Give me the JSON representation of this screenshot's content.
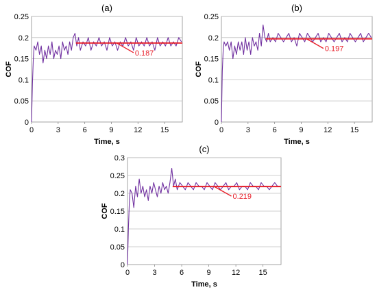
{
  "chart_data": [
    {
      "type": "line",
      "panel_label": "(a)",
      "xlabel": "Time, s",
      "ylabel": "COF",
      "xlim": [
        0,
        17
      ],
      "ylim": [
        0,
        0.25
      ],
      "xticks": [
        0,
        3,
        6,
        9,
        12,
        15
      ],
      "yticks": [
        0,
        0.05,
        0.1,
        0.15,
        0.2,
        0.25
      ],
      "ytick_labels": [
        "0",
        "0.05",
        "0.1",
        "0.15",
        "0.2",
        "0.25"
      ],
      "grid": true,
      "series": [
        {
          "x": [
            0,
            0.1,
            0.2,
            0.3,
            0.5,
            0.7,
            0.9,
            1.1,
            1.3,
            1.5,
            1.7,
            1.9,
            2.1,
            2.3,
            2.5,
            2.7,
            2.9,
            3.1,
            3.3,
            3.5,
            3.7,
            3.9,
            4.1,
            4.3,
            4.5,
            4.7,
            4.9,
            5.1,
            5.3,
            5.5,
            5.8,
            6.1,
            6.4,
            6.7,
            7.0,
            7.3,
            7.6,
            7.9,
            8.2,
            8.5,
            8.8,
            9.1,
            9.4,
            9.7,
            10.0,
            10.3,
            10.6,
            10.9,
            11.2,
            11.5,
            11.8,
            12.1,
            12.4,
            12.7,
            13.0,
            13.3,
            13.6,
            13.9,
            14.2,
            14.5,
            14.8,
            15.1,
            15.4,
            15.7,
            16.0,
            16.3,
            16.6,
            16.9
          ],
          "y": [
            0.0,
            0.09,
            0.15,
            0.18,
            0.17,
            0.19,
            0.16,
            0.18,
            0.14,
            0.17,
            0.15,
            0.18,
            0.16,
            0.19,
            0.15,
            0.17,
            0.16,
            0.18,
            0.15,
            0.19,
            0.17,
            0.18,
            0.16,
            0.19,
            0.17,
            0.2,
            0.21,
            0.18,
            0.2,
            0.17,
            0.19,
            0.18,
            0.2,
            0.17,
            0.19,
            0.18,
            0.2,
            0.18,
            0.19,
            0.17,
            0.2,
            0.18,
            0.19,
            0.17,
            0.19,
            0.18,
            0.2,
            0.18,
            0.19,
            0.17,
            0.2,
            0.18,
            0.19,
            0.18,
            0.2,
            0.18,
            0.19,
            0.17,
            0.2,
            0.18,
            0.19,
            0.18,
            0.2,
            0.18,
            0.19,
            0.18,
            0.2,
            0.19
          ]
        }
      ],
      "mean": {
        "value": 0.187,
        "label": "0.187",
        "x_from": 5,
        "x_to": 17
      }
    },
    {
      "type": "line",
      "panel_label": "(b)",
      "xlabel": "Time, s",
      "ylabel": "COF",
      "xlim": [
        0,
        17
      ],
      "ylim": [
        0,
        0.25
      ],
      "xticks": [
        0,
        3,
        6,
        9,
        12,
        15
      ],
      "yticks": [
        0,
        0.05,
        0.1,
        0.15,
        0.2,
        0.25
      ],
      "ytick_labels": [
        "0",
        "0.05",
        "0.1",
        "0.15",
        "0.2",
        "0.25"
      ],
      "grid": true,
      "series": [
        {
          "x": [
            0,
            0.1,
            0.2,
            0.3,
            0.5,
            0.7,
            0.9,
            1.1,
            1.3,
            1.5,
            1.7,
            1.9,
            2.1,
            2.3,
            2.5,
            2.7,
            2.9,
            3.1,
            3.3,
            3.5,
            3.7,
            3.9,
            4.1,
            4.3,
            4.5,
            4.7,
            4.9,
            5.1,
            5.3,
            5.5,
            5.8,
            6.1,
            6.4,
            6.7,
            7.0,
            7.3,
            7.6,
            7.9,
            8.2,
            8.5,
            8.8,
            9.1,
            9.4,
            9.7,
            10.0,
            10.3,
            10.6,
            10.9,
            11.2,
            11.5,
            11.8,
            12.1,
            12.4,
            12.7,
            13.0,
            13.3,
            13.6,
            13.9,
            14.2,
            14.5,
            14.8,
            15.1,
            15.4,
            15.7,
            16.0,
            16.3,
            16.6,
            16.9
          ],
          "y": [
            0.0,
            0.12,
            0.17,
            0.19,
            0.18,
            0.19,
            0.17,
            0.19,
            0.15,
            0.18,
            0.16,
            0.19,
            0.17,
            0.19,
            0.16,
            0.2,
            0.17,
            0.19,
            0.16,
            0.2,
            0.18,
            0.19,
            0.17,
            0.21,
            0.18,
            0.23,
            0.2,
            0.19,
            0.21,
            0.19,
            0.2,
            0.19,
            0.21,
            0.2,
            0.19,
            0.2,
            0.21,
            0.19,
            0.2,
            0.18,
            0.21,
            0.2,
            0.19,
            0.21,
            0.2,
            0.19,
            0.2,
            0.21,
            0.19,
            0.2,
            0.19,
            0.21,
            0.2,
            0.19,
            0.2,
            0.21,
            0.19,
            0.2,
            0.19,
            0.21,
            0.2,
            0.19,
            0.2,
            0.21,
            0.19,
            0.2,
            0.21,
            0.2
          ]
        }
      ],
      "mean": {
        "value": 0.197,
        "label": "0.197",
        "x_from": 5,
        "x_to": 17
      }
    },
    {
      "type": "line",
      "panel_label": "(c)",
      "xlabel": "Time, s",
      "ylabel": "COF",
      "xlim": [
        0,
        17
      ],
      "ylim": [
        0,
        0.3
      ],
      "xticks": [
        0,
        3,
        6,
        9,
        12,
        15
      ],
      "yticks": [
        0,
        0.05,
        0.1,
        0.15,
        0.2,
        0.25,
        0.3
      ],
      "ytick_labels": [
        "0",
        "0.05",
        "0.1",
        "0.15",
        "0.2",
        "0.25",
        "0.3"
      ],
      "grid": true,
      "series": [
        {
          "x": [
            0,
            0.1,
            0.2,
            0.3,
            0.5,
            0.7,
            0.9,
            1.1,
            1.3,
            1.5,
            1.7,
            1.9,
            2.1,
            2.3,
            2.5,
            2.7,
            2.9,
            3.1,
            3.3,
            3.5,
            3.7,
            3.9,
            4.1,
            4.3,
            4.5,
            4.7,
            4.9,
            5.1,
            5.3,
            5.5,
            5.8,
            6.1,
            6.4,
            6.7,
            7.0,
            7.3,
            7.6,
            7.9,
            8.2,
            8.5,
            8.8,
            9.1,
            9.4,
            9.7,
            10.0,
            10.3,
            10.6,
            10.9,
            11.2,
            11.5,
            11.8,
            12.1,
            12.4,
            12.7,
            13.0,
            13.3,
            13.6,
            13.9,
            14.2,
            14.5,
            14.8,
            15.1,
            15.4,
            15.7,
            16.0,
            16.3,
            16.6,
            16.9
          ],
          "y": [
            0.0,
            0.1,
            0.17,
            0.21,
            0.2,
            0.16,
            0.22,
            0.19,
            0.24,
            0.2,
            0.22,
            0.19,
            0.21,
            0.18,
            0.22,
            0.2,
            0.23,
            0.21,
            0.19,
            0.22,
            0.2,
            0.23,
            0.21,
            0.22,
            0.2,
            0.23,
            0.27,
            0.22,
            0.24,
            0.21,
            0.23,
            0.22,
            0.21,
            0.23,
            0.22,
            0.21,
            0.23,
            0.22,
            0.22,
            0.21,
            0.23,
            0.22,
            0.21,
            0.23,
            0.22,
            0.21,
            0.22,
            0.23,
            0.21,
            0.22,
            0.22,
            0.23,
            0.21,
            0.22,
            0.22,
            0.21,
            0.23,
            0.22,
            0.22,
            0.21,
            0.23,
            0.22,
            0.22,
            0.21,
            0.22,
            0.23,
            0.22,
            0.22
          ]
        }
      ],
      "mean": {
        "value": 0.219,
        "label": "0.219",
        "x_from": 5,
        "x_to": 17
      }
    }
  ],
  "colors": {
    "series": "#7030A0",
    "mean_line": "#E8202A",
    "mean_label": "#E8202A",
    "grid": "#BFBFBF",
    "axis": "#8C8C8C",
    "text": "#000000"
  }
}
